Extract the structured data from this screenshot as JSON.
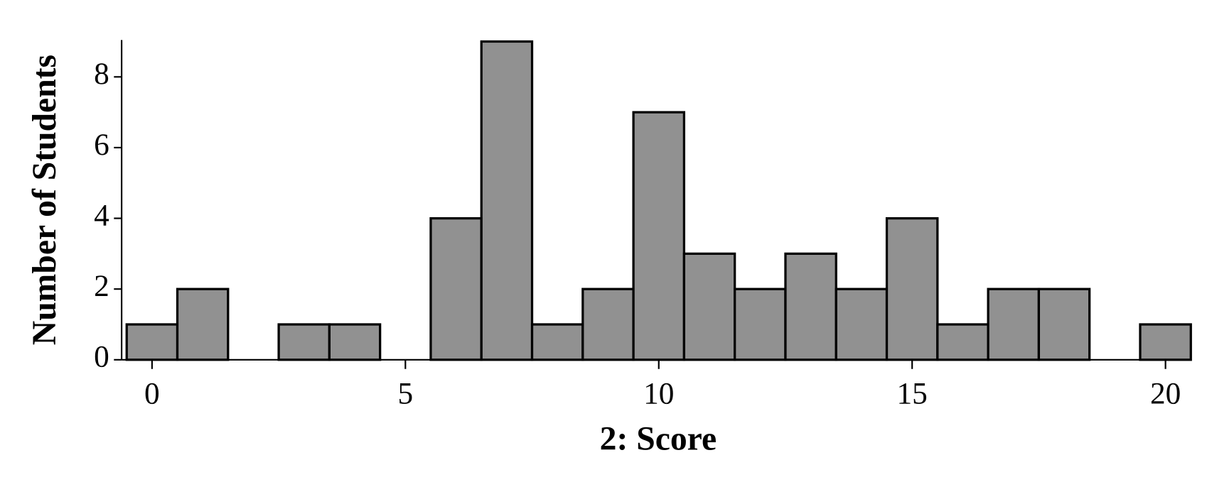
{
  "chart_data": {
    "type": "histogram",
    "xlabel": "2: Score",
    "ylabel": "Number of Students",
    "bins": [
      -0.5,
      0.5,
      1.5,
      2.5,
      3.5,
      4.5,
      5.5,
      6.5,
      7.5,
      8.5,
      9.5,
      10.5,
      11.5,
      12.5,
      13.5,
      14.5,
      15.5,
      16.5,
      17.5,
      18.5,
      19.5,
      20.5
    ],
    "values": [
      1,
      2,
      0,
      1,
      1,
      0,
      4,
      9,
      1,
      2,
      7,
      3,
      2,
      3,
      2,
      4,
      1,
      2,
      2,
      0,
      1
    ],
    "color": "#919191",
    "xlim": [
      -0.6,
      20.5
    ],
    "ylim": [
      0,
      9
    ],
    "xticks": [
      0,
      5,
      10,
      15,
      20
    ],
    "yticks": [
      0,
      2,
      4,
      6,
      8
    ]
  }
}
